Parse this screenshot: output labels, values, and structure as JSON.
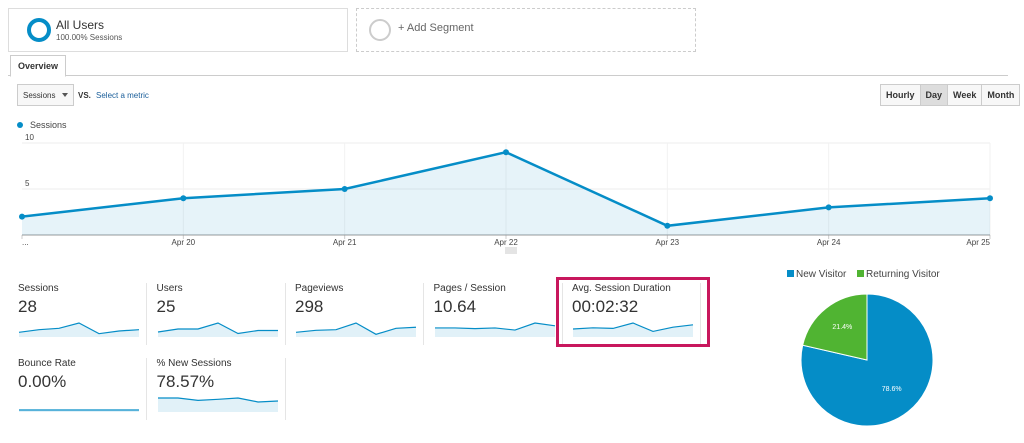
{
  "segments": [
    {
      "title": "All Users",
      "subtitle": "100.00% Sessions"
    },
    {
      "title": "+ Add Segment"
    }
  ],
  "tabs": [
    "Overview"
  ],
  "controls": {
    "metric": "Sessions",
    "vs": "VS.",
    "select": "Select a metric",
    "periods": [
      "Hourly",
      "Day",
      "Week",
      "Month"
    ],
    "active_period": 1
  },
  "chart_data": [
    {
      "type": "line",
      "categories": [
        "...",
        "Apr 20",
        "Apr 21",
        "Apr 22",
        "Apr 23",
        "Apr 24",
        "Apr 25"
      ],
      "series": [
        {
          "name": "Sessions",
          "color": "#058dc7",
          "values": [
            2,
            4,
            5,
            9,
            1,
            3,
            4
          ]
        }
      ],
      "ylim": [
        0,
        10
      ],
      "yticks": [
        5,
        10
      ],
      "grid": true,
      "area": true
    },
    {
      "type": "pie",
      "categories": [
        "New Visitor",
        "Returning Visitor"
      ],
      "values": [
        78.6,
        21.4
      ],
      "value_labels": [
        "78.6%",
        "21.4%"
      ],
      "colors": [
        "#058dc7",
        "#50b432"
      ]
    }
  ],
  "metrics": [
    {
      "label": "Sessions",
      "value": "28",
      "trend": [
        2,
        4,
        5,
        9,
        1,
        3,
        4
      ]
    },
    {
      "label": "Users",
      "value": "25",
      "trend": [
        2,
        4,
        4,
        8,
        1,
        3,
        3
      ]
    },
    {
      "label": "Pageviews",
      "value": "298",
      "trend": [
        20,
        35,
        40,
        90,
        5,
        50,
        58
      ]
    },
    {
      "label": "Pages / Session",
      "value": "10.64",
      "trend": [
        10,
        10,
        9,
        10,
        7,
        17,
        13
      ]
    },
    {
      "label": "Avg. Session Duration",
      "value": "00:02:32",
      "trend": [
        100,
        120,
        110,
        200,
        60,
        130,
        170
      ]
    },
    {
      "label": "Bounce Rate",
      "value": "0.00%",
      "trend": [
        0,
        0,
        0,
        0,
        0,
        0,
        0
      ]
    },
    {
      "label": "% New Sessions",
      "value": "78.57%",
      "trend": [
        100,
        100,
        80,
        89,
        100,
        67,
        75
      ]
    }
  ]
}
